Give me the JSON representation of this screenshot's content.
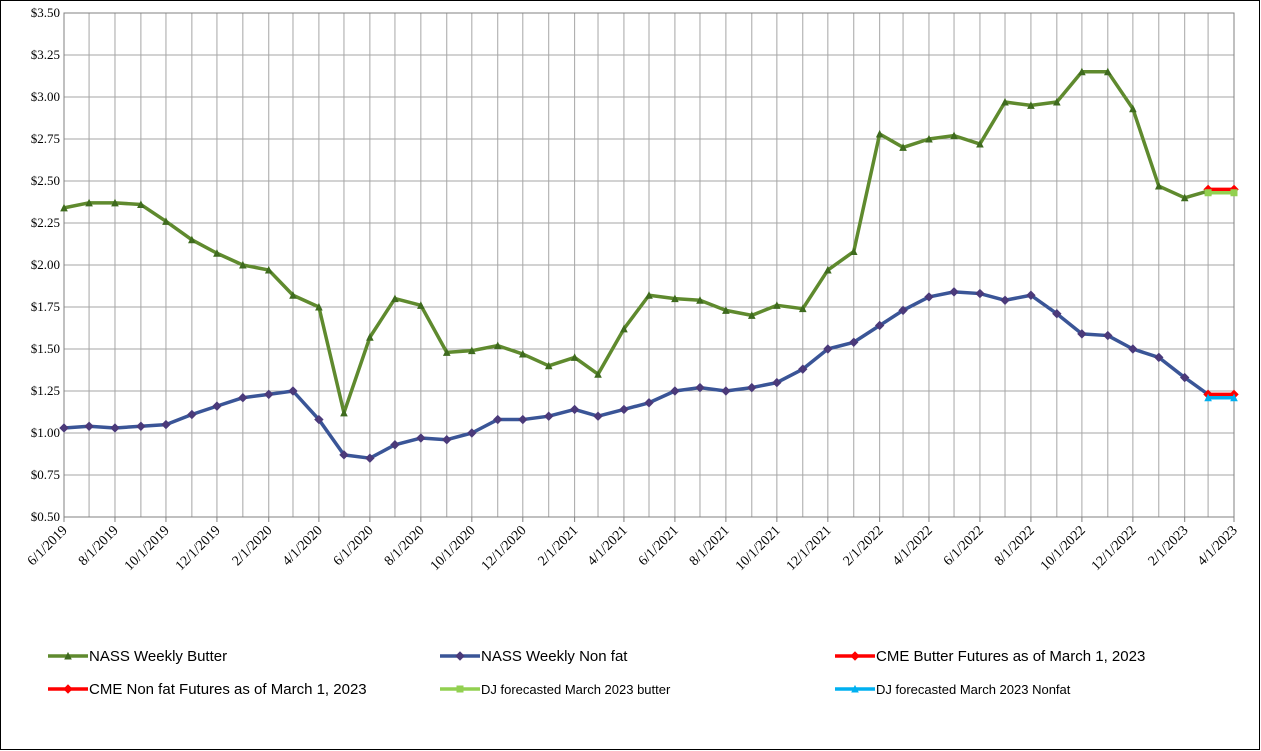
{
  "chart_data": {
    "type": "line",
    "x": [
      "6/1/2019",
      "7/1/2019",
      "8/1/2019",
      "9/1/2019",
      "10/1/2019",
      "11/1/2019",
      "12/1/2019",
      "1/1/2020",
      "2/1/2020",
      "3/1/2020",
      "4/1/2020",
      "5/1/2020",
      "6/1/2020",
      "7/1/2020",
      "8/1/2020",
      "9/1/2020",
      "10/1/2020",
      "11/1/2020",
      "12/1/2020",
      "1/1/2021",
      "2/1/2021",
      "3/1/2021",
      "4/1/2021",
      "5/1/2021",
      "6/1/2021",
      "7/1/2021",
      "8/1/2021",
      "9/1/2021",
      "10/1/2021",
      "11/1/2021",
      "12/1/2021",
      "1/1/2022",
      "2/1/2022",
      "3/1/2022",
      "4/1/2022",
      "5/1/2022",
      "6/1/2022",
      "7/1/2022",
      "8/1/2022",
      "9/1/2022",
      "10/1/2022",
      "11/1/2022",
      "12/1/2022",
      "1/1/2023",
      "2/1/2023",
      "3/1/2023",
      "4/1/2023"
    ],
    "series": [
      {
        "name": "NASS Weekly Butter",
        "color": "#5f8a2e",
        "marker": "triangle",
        "values": [
          2.34,
          2.37,
          2.37,
          2.36,
          2.26,
          2.15,
          2.07,
          2.0,
          1.97,
          1.82,
          1.75,
          1.12,
          1.57,
          1.8,
          1.76,
          1.48,
          1.49,
          1.52,
          1.47,
          1.4,
          1.45,
          1.35,
          1.62,
          1.82,
          1.8,
          1.79,
          1.73,
          1.7,
          1.76,
          1.74,
          1.97,
          2.08,
          2.78,
          2.7,
          2.75,
          2.77,
          2.72,
          2.97,
          2.95,
          2.97,
          3.15,
          3.15,
          2.93,
          2.47,
          2.4,
          2.44,
          null
        ]
      },
      {
        "name": "NASS Weekly Non fat",
        "color": "#3a5597",
        "marker": "diamond",
        "values": [
          1.03,
          1.04,
          1.03,
          1.04,
          1.05,
          1.11,
          1.16,
          1.21,
          1.23,
          1.25,
          1.08,
          0.87,
          0.85,
          0.93,
          0.97,
          0.96,
          1.0,
          1.08,
          1.08,
          1.1,
          1.14,
          1.1,
          1.14,
          1.18,
          1.25,
          1.27,
          1.25,
          1.27,
          1.3,
          1.38,
          1.5,
          1.54,
          1.64,
          1.73,
          1.81,
          1.84,
          1.83,
          1.79,
          1.82,
          1.71,
          1.59,
          1.58,
          1.5,
          1.45,
          1.33,
          1.23,
          null
        ]
      },
      {
        "name": "CME Butter Futures as of March 1, 2023",
        "color": "#ff0000",
        "marker": "diamond",
        "values": [
          null,
          null,
          null,
          null,
          null,
          null,
          null,
          null,
          null,
          null,
          null,
          null,
          null,
          null,
          null,
          null,
          null,
          null,
          null,
          null,
          null,
          null,
          null,
          null,
          null,
          null,
          null,
          null,
          null,
          null,
          null,
          null,
          null,
          null,
          null,
          null,
          null,
          null,
          null,
          null,
          null,
          null,
          null,
          null,
          null,
          2.45,
          2.45
        ]
      },
      {
        "name": "CME Non fat  Futures as of March 1, 2023",
        "color": "#ff0000",
        "marker": "diamond",
        "values": [
          null,
          null,
          null,
          null,
          null,
          null,
          null,
          null,
          null,
          null,
          null,
          null,
          null,
          null,
          null,
          null,
          null,
          null,
          null,
          null,
          null,
          null,
          null,
          null,
          null,
          null,
          null,
          null,
          null,
          null,
          null,
          null,
          null,
          null,
          null,
          null,
          null,
          null,
          null,
          null,
          null,
          null,
          null,
          null,
          null,
          1.23,
          1.23
        ]
      },
      {
        "name": "DJ forecasted March 2023  butter",
        "color": "#92d050",
        "marker": "square",
        "values": [
          null,
          null,
          null,
          null,
          null,
          null,
          null,
          null,
          null,
          null,
          null,
          null,
          null,
          null,
          null,
          null,
          null,
          null,
          null,
          null,
          null,
          null,
          null,
          null,
          null,
          null,
          null,
          null,
          null,
          null,
          null,
          null,
          null,
          null,
          null,
          null,
          null,
          null,
          null,
          null,
          null,
          null,
          null,
          null,
          null,
          2.43,
          2.43
        ]
      },
      {
        "name": "DJ forecasted March 2023  Nonfat",
        "color": "#00b0f0",
        "marker": "triangle",
        "values": [
          null,
          null,
          null,
          null,
          null,
          null,
          null,
          null,
          null,
          null,
          null,
          null,
          null,
          null,
          null,
          null,
          null,
          null,
          null,
          null,
          null,
          null,
          null,
          null,
          null,
          null,
          null,
          null,
          null,
          null,
          null,
          null,
          null,
          null,
          null,
          null,
          null,
          null,
          null,
          null,
          null,
          null,
          null,
          null,
          null,
          1.21,
          1.21
        ]
      }
    ],
    "xlim": [
      "6/1/2019",
      "4/1/2023"
    ],
    "xticks": [
      "6/1/2019",
      "8/1/2019",
      "10/1/2019",
      "12/1/2019",
      "2/1/2020",
      "4/1/2020",
      "6/1/2020",
      "8/1/2020",
      "10/1/2020",
      "12/1/2020",
      "2/1/2021",
      "4/1/2021",
      "6/1/2021",
      "8/1/2021",
      "10/1/2021",
      "12/1/2021",
      "2/1/2022",
      "4/1/2022",
      "6/1/2022",
      "8/1/2022",
      "10/1/2022",
      "12/1/2022",
      "2/1/2023",
      "4/1/2023"
    ],
    "ylim": [
      0.5,
      3.5
    ],
    "yticks": [
      {
        "value": 0.5,
        "label": "$0.50"
      },
      {
        "value": 0.75,
        "label": "$0.75"
      },
      {
        "value": 1.0,
        "label": "$1.00"
      },
      {
        "value": 1.25,
        "label": "$1.25"
      },
      {
        "value": 1.5,
        "label": "$1.50"
      },
      {
        "value": 1.75,
        "label": "$1.75"
      },
      {
        "value": 2.0,
        "label": "$2.00"
      },
      {
        "value": 2.25,
        "label": "$2.25"
      },
      {
        "value": 2.5,
        "label": "$2.50"
      },
      {
        "value": 2.75,
        "label": "$2.75"
      },
      {
        "value": 3.0,
        "label": "$3.00"
      },
      {
        "value": 3.25,
        "label": "$3.25"
      },
      {
        "value": 3.5,
        "label": "$3.50"
      }
    ],
    "grid": true,
    "legend": "bottom"
  }
}
